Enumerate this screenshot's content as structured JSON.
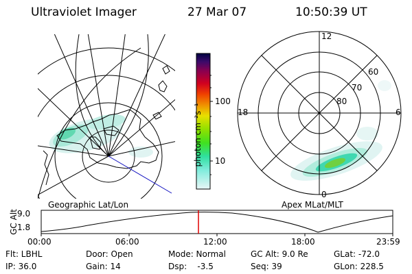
{
  "header": {
    "title": "Ultraviolet Imager",
    "date": "27 Mar 07",
    "time": "10:50:39 UT"
  },
  "left_panel": {
    "label": "Geographic Lat/Lon"
  },
  "right_panel": {
    "label": "Apex MLat/MLT",
    "mlt_labels": [
      "12",
      "18",
      "6",
      "0"
    ],
    "lat_labels": [
      "60",
      "70",
      "80"
    ]
  },
  "colorbar": {
    "unit": "photon cm⁻²s⁻¹",
    "ticks": [
      "100",
      "10"
    ],
    "colors": [
      "#000040",
      "#3a0a6a",
      "#8a0050",
      "#c0002a",
      "#e02000",
      "#f06000",
      "#f0a000",
      "#e8e000",
      "#b0e000",
      "#50e000",
      "#30e060",
      "#30e0c0",
      "#a0f0e8",
      "#e6f6f6"
    ]
  },
  "gc_alt_plot": {
    "ylabel": "GC Alt",
    "yticks": [
      "9.0",
      "1.8"
    ],
    "xticks": [
      "00:00",
      "06:00",
      "12:00",
      "18:00",
      "23:59"
    ],
    "marker_time": "10:50:39"
  },
  "info": {
    "filter": "Flt: LBHL",
    "ip": "IP: 36.0",
    "door": "Door: Open",
    "gain": "Gain: 14",
    "mode": "Mode: Normal",
    "dsp": "Dsp:    -3.5",
    "gc_alt": "GC Alt: 9.0 Re",
    "seq": "Seq: 39",
    "glat": "GLat: -72.0",
    "glon": "GLon: 228.5"
  },
  "colors": {
    "aurora_core": "#30c090",
    "aurora_edge": "#a8e8d8",
    "aurora_bright": "#70d040",
    "marker": "#e00000",
    "track": "#1010c0"
  }
}
